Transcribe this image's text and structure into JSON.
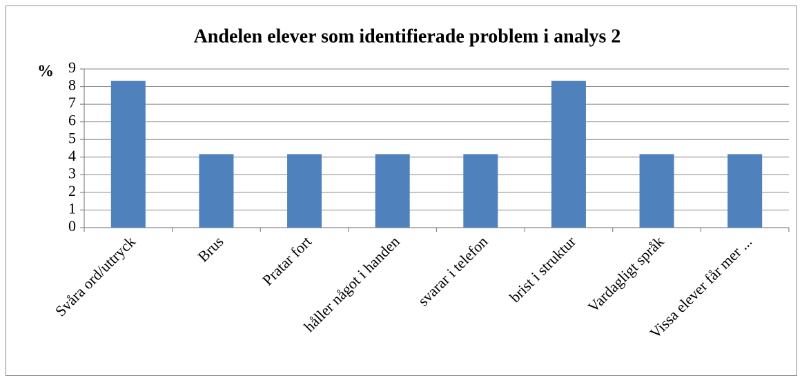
{
  "chart_data": {
    "type": "bar",
    "title": "Andelen elever som identifierade problem i analys 2",
    "y_label": "%",
    "categories": [
      "Svåra ord/uttryck",
      "Brus",
      "Pratar fort",
      "håller något i handen",
      "svarar i telefon",
      "brist i struktur",
      "Vardagligt språk",
      "Vissa elever får mer ..."
    ],
    "values": [
      8.33,
      4.17,
      4.17,
      4.17,
      4.17,
      8.33,
      4.17,
      4.17
    ],
    "color": "#4f81bd",
    "ylim": [
      0,
      9
    ],
    "yticks": [
      0,
      1,
      2,
      3,
      4,
      5,
      6,
      7,
      8,
      9
    ],
    "grid": true
  }
}
